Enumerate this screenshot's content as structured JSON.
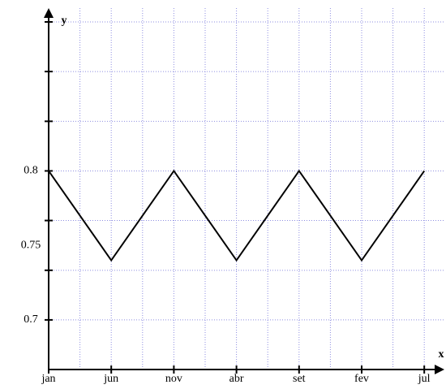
{
  "chart_data": {
    "type": "line",
    "x_label": "x",
    "y_label": "y",
    "categories": [
      "jan",
      "jun",
      "nov",
      "abr",
      "set",
      "fev",
      "jul"
    ],
    "values": [
      0.8,
      0.74,
      0.8,
      0.74,
      0.8,
      0.74,
      0.8
    ],
    "color": "#000000",
    "ylim": [
      0.6667,
      0.9
    ],
    "yticks": [
      0.7,
      0.75,
      0.8
    ],
    "ygrid": [
      0.7,
      0.7333,
      0.7667,
      0.8,
      0.8333,
      0.8667,
      0.9
    ],
    "grid": true
  }
}
